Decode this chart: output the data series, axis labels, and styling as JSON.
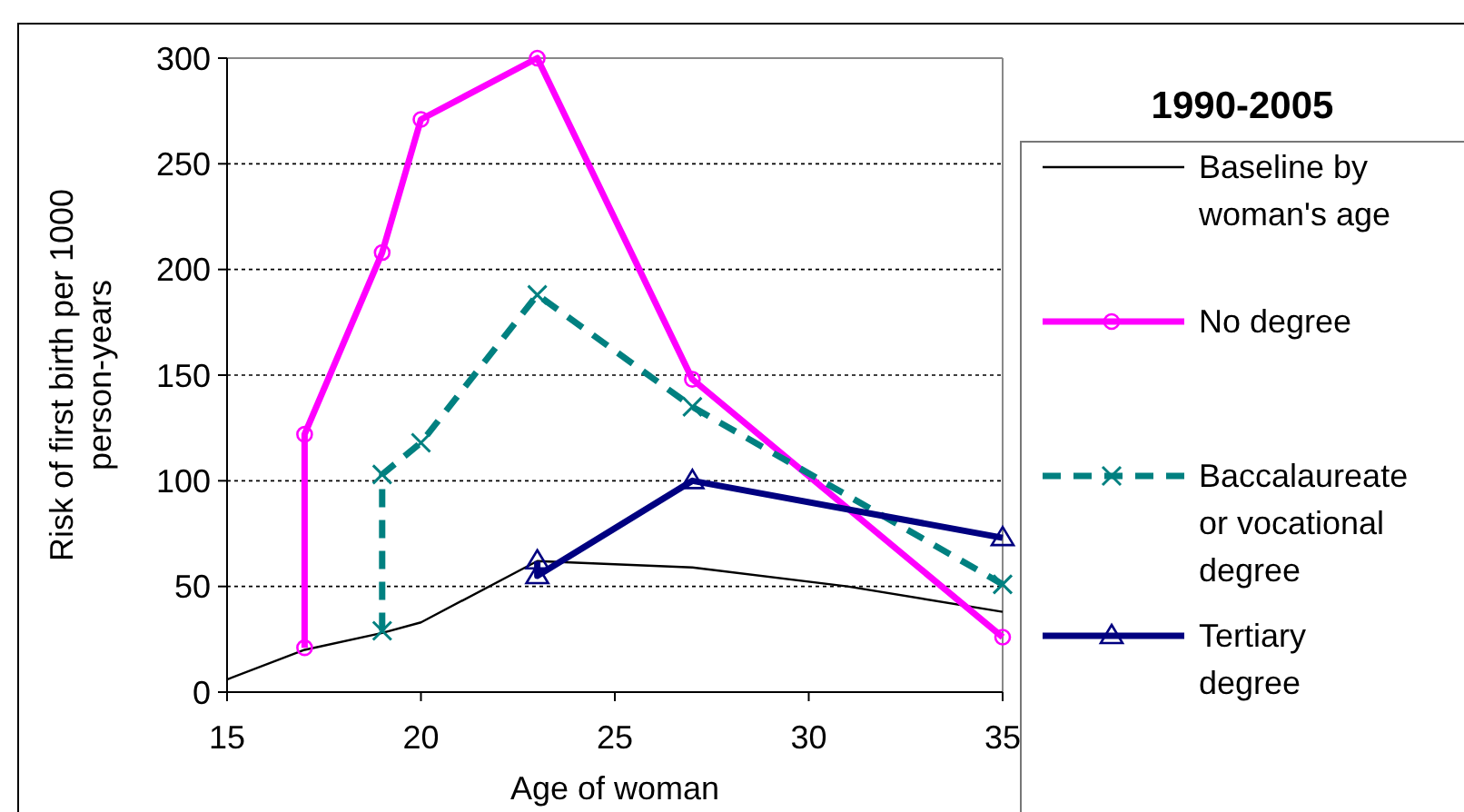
{
  "chart_data": {
    "type": "line",
    "xlabel": "Age of woman",
    "ylabel": "Risk of first birth per 1000 person-years",
    "legend_title": "1990-2005",
    "legend": "right",
    "grid": "y",
    "xlim": [
      15,
      35
    ],
    "xticks": [
      15,
      20,
      25,
      30,
      35
    ],
    "ylim": [
      0,
      300
    ],
    "yticks": [
      0,
      50,
      100,
      150,
      200,
      250,
      300
    ],
    "series": [
      {
        "name": "Baseline by woman's age",
        "color": "#000000",
        "marker": "none",
        "line_style": "solid",
        "x": [
          15,
          17,
          19,
          20,
          23,
          27,
          31,
          35
        ],
        "values": [
          6,
          20,
          28,
          33,
          62,
          59,
          50,
          38
        ]
      },
      {
        "name": "No degree",
        "color": "#ff00ff",
        "marker": "circle",
        "line_style": "solid",
        "x": [
          17,
          17,
          19,
          20,
          23,
          27,
          35
        ],
        "values": [
          21,
          122,
          208,
          271,
          300,
          148,
          26
        ]
      },
      {
        "name": "Baccalaureate or vocational degree",
        "color": "#008080",
        "marker": "cross",
        "line_style": "dashed",
        "x": [
          19,
          19,
          20,
          23,
          27,
          35
        ],
        "values": [
          29,
          103,
          118,
          188,
          135,
          51
        ]
      },
      {
        "name": "Tertiary degree",
        "color": "#000080",
        "marker": "triangle",
        "line_style": "solid",
        "x": [
          23,
          23,
          27,
          35
        ],
        "values": [
          62,
          55,
          100,
          73
        ]
      }
    ]
  }
}
